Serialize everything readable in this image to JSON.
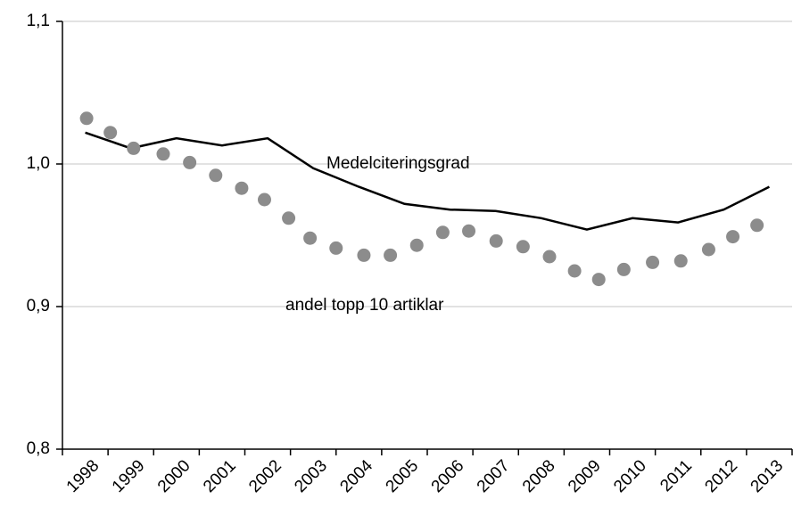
{
  "chart_data": {
    "type": "line",
    "categories": [
      "1998",
      "1999",
      "2000",
      "2001",
      "2002",
      "2003",
      "2004",
      "2005",
      "2006",
      "2007",
      "2008",
      "2009",
      "2010",
      "2011",
      "2012",
      "2013"
    ],
    "series": [
      {
        "name": "Medelciteringsgrad",
        "type": "line",
        "color": "#000000",
        "values": [
          1.022,
          1.011,
          1.018,
          1.013,
          1.018,
          0.997,
          0.984,
          0.972,
          0.968,
          0.967,
          0.962,
          0.954,
          0.962,
          0.959,
          0.968,
          0.984
        ]
      },
      {
        "name": "andel topp 10 artiklar",
        "type": "scatter",
        "color": "#8c8c8c",
        "x": [
          1998.03,
          1998.55,
          1999.06,
          1999.71,
          2000.29,
          2000.86,
          2001.43,
          2001.93,
          2002.46,
          2002.93,
          2003.5,
          2004.11,
          2004.69,
          2005.27,
          2005.84,
          2006.41,
          2007.01,
          2007.6,
          2008.18,
          2008.73,
          2009.26,
          2009.81,
          2010.44,
          2011.06,
          2011.67,
          2012.2,
          2012.73
        ],
        "values": [
          1.032,
          1.022,
          1.011,
          1.007,
          1.001,
          0.992,
          0.983,
          0.975,
          0.962,
          0.948,
          0.941,
          0.936,
          0.936,
          0.943,
          0.952,
          0.953,
          0.946,
          0.942,
          0.935,
          0.925,
          0.919,
          0.926,
          0.931,
          0.932,
          0.94,
          0.949,
          0.957
        ]
      }
    ],
    "ylim": [
      0.8,
      1.1
    ],
    "yticks": [
      {
        "value": 0.8,
        "label": "0,8"
      },
      {
        "value": 0.9,
        "label": "0,9"
      },
      {
        "value": 1.0,
        "label": "1,0"
      },
      {
        "value": 1.1,
        "label": "1,1"
      }
    ],
    "grid": true
  }
}
